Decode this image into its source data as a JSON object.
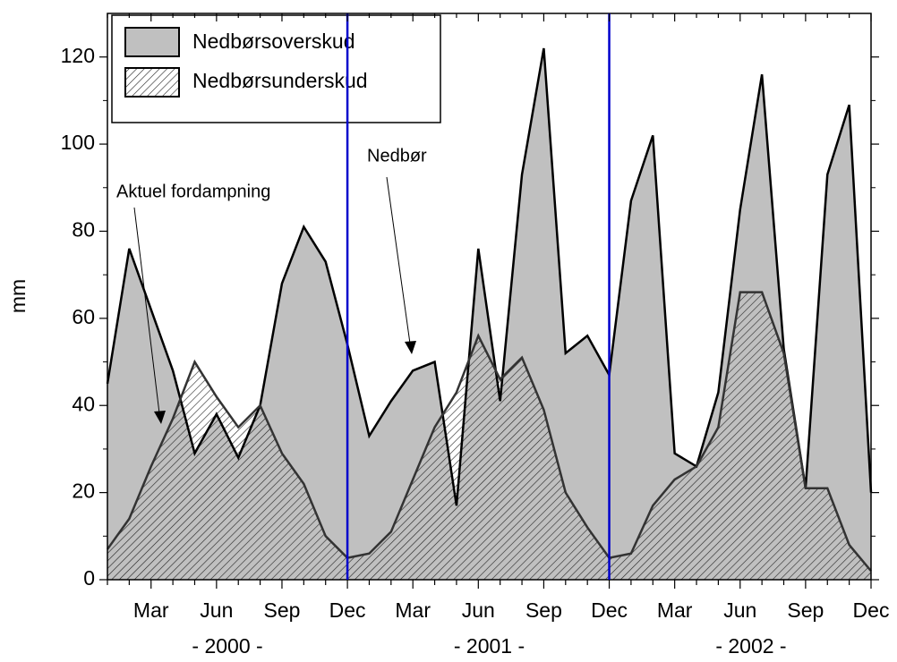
{
  "chart_data": {
    "type": "area",
    "y_label": "mm",
    "categories": [
      null,
      null,
      "Mar",
      null,
      null,
      "Jun",
      null,
      null,
      "Sep",
      null,
      null,
      "Dec",
      null,
      null,
      "Mar",
      null,
      null,
      "Jun",
      null,
      null,
      "Sep",
      null,
      null,
      "Dec",
      null,
      null,
      "Mar",
      null,
      null,
      "Jun",
      null,
      null,
      "Sep",
      null,
      null,
      "Dec"
    ],
    "year_labels": [
      "- 2000 -",
      "- 2001 -",
      "- 2002 -"
    ],
    "divider_color": "#0000cc",
    "series": [
      {
        "name": "Nedbør",
        "color": "#c0c0c0",
        "values": [
          45,
          76,
          62,
          48,
          29,
          38,
          28,
          40,
          68,
          81,
          73,
          54,
          33,
          41,
          48,
          50,
          17,
          76,
          41,
          93,
          122,
          52,
          56,
          47,
          87,
          102,
          29,
          26,
          43,
          85,
          116,
          53,
          21,
          93,
          109,
          20
        ]
      },
      {
        "name": "Aktuel fordampning",
        "color": "#333333",
        "values": [
          7,
          14,
          26,
          37,
          50,
          42,
          35,
          40,
          29,
          22,
          10,
          5,
          6,
          11,
          23,
          35,
          43,
          56,
          46,
          51,
          39,
          20,
          12,
          5,
          6,
          17,
          23,
          26,
          35,
          66,
          66,
          52,
          21,
          21,
          8,
          2
        ]
      }
    ],
    "legend": [
      {
        "label": "Nedbørsoverskud",
        "color": "#c0c0c0"
      },
      {
        "label": "Nedbørsunderskud",
        "pattern": "hatch"
      }
    ],
    "ylim": [
      0,
      130
    ],
    "yticks": [
      0,
      20,
      40,
      60,
      80,
      100,
      120
    ]
  }
}
